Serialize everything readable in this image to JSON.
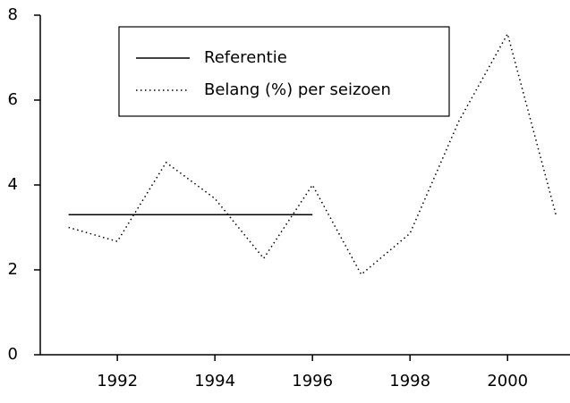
{
  "chart_data": {
    "type": "line",
    "x": [
      1991,
      1992,
      1993,
      1994,
      1995,
      1996,
      1997,
      1998,
      1999,
      2000,
      2001
    ],
    "series": [
      {
        "name": "Referentie",
        "color": "#000000",
        "style": "solid",
        "values": [
          3.3,
          3.3,
          3.3,
          3.3,
          3.3,
          3.3,
          null,
          null,
          null,
          null,
          null
        ]
      },
      {
        "name": "Belang (%) per seizoen",
        "color": "#000000",
        "style": "dotted",
        "values": [
          3.0,
          2.67,
          4.53,
          3.68,
          2.27,
          4.0,
          1.89,
          2.86,
          5.5,
          7.56,
          3.26
        ]
      }
    ],
    "xlim": [
      1990.42,
      2001.28
    ],
    "xticks": [
      1992,
      1994,
      1996,
      1998,
      2000
    ],
    "ylim": [
      0,
      8
    ],
    "yticks": [
      0,
      2,
      4,
      6,
      8
    ],
    "grid": false,
    "legend": "top"
  }
}
